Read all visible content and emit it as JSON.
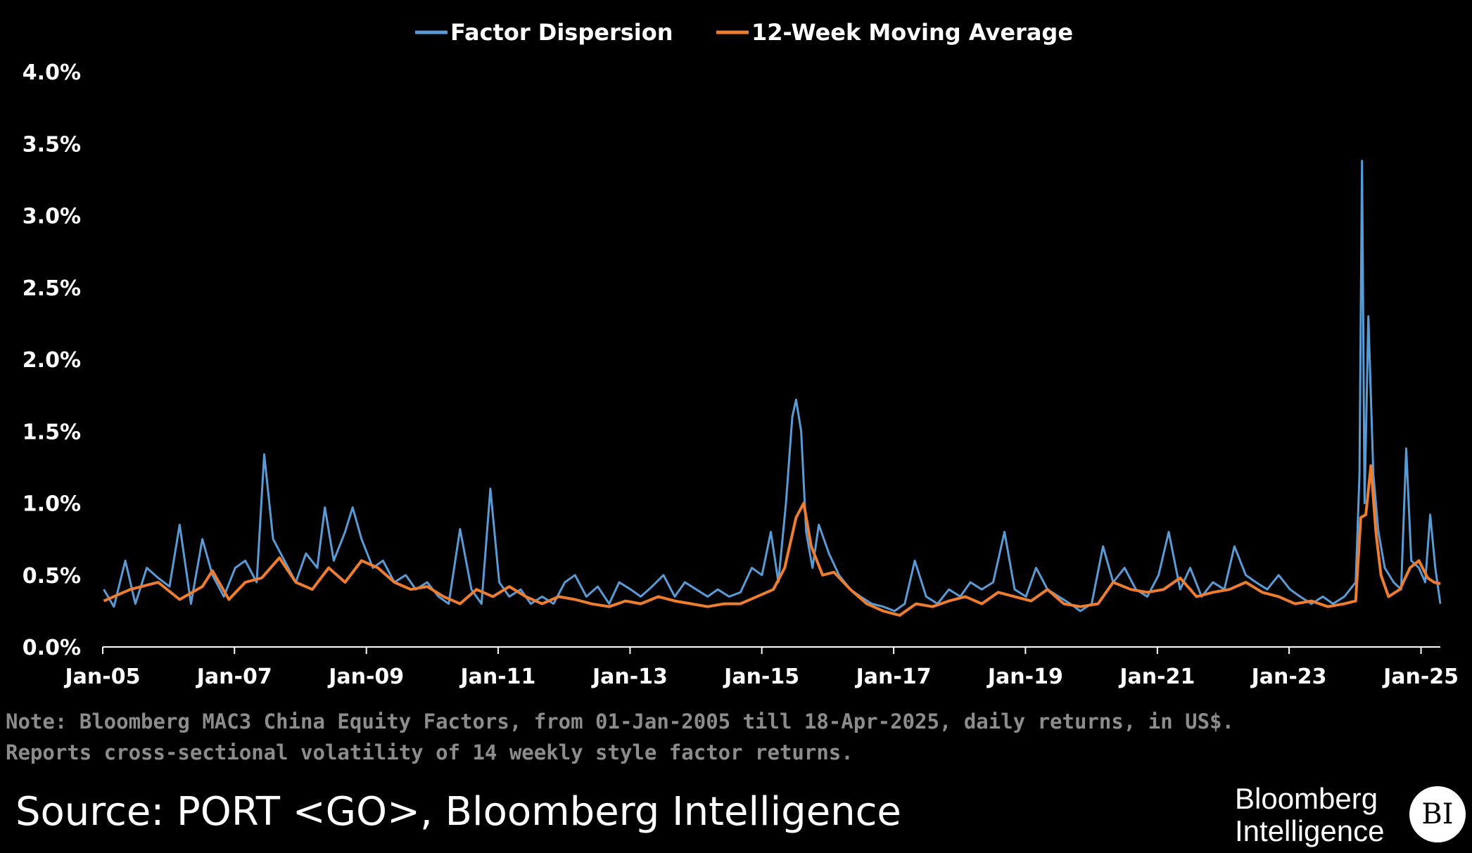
{
  "chart_data": {
    "type": "line",
    "title": "",
    "xlabel": "",
    "ylabel": "",
    "ylim": [
      0,
      4.0
    ],
    "xlim": [
      "2005-01-01",
      "2025-04-18"
    ],
    "y_ticks": [
      "0.0%",
      "0.5%",
      "1.0%",
      "1.5%",
      "2.0%",
      "2.5%",
      "3.0%",
      "3.5%",
      "4.0%"
    ],
    "x_ticks": [
      "Jan-05",
      "Jan-07",
      "Jan-09",
      "Jan-11",
      "Jan-13",
      "Jan-15",
      "Jan-17",
      "Jan-19",
      "Jan-21",
      "Jan-23",
      "Jan-25"
    ],
    "grid": false,
    "legend_position": "top-center",
    "series": [
      {
        "name": "Factor Dispersion",
        "color": "#5b9bd5",
        "points": [
          [
            "2005-01-07",
            0.4
          ],
          [
            "2005-03-04",
            0.28
          ],
          [
            "2005-05-06",
            0.6
          ],
          [
            "2005-07-01",
            0.3
          ],
          [
            "2005-09-02",
            0.55
          ],
          [
            "2005-11-04",
            0.48
          ],
          [
            "2006-01-06",
            0.42
          ],
          [
            "2006-03-03",
            0.85
          ],
          [
            "2006-05-05",
            0.3
          ],
          [
            "2006-07-07",
            0.75
          ],
          [
            "2006-09-01",
            0.5
          ],
          [
            "2006-11-03",
            0.35
          ],
          [
            "2007-01-05",
            0.55
          ],
          [
            "2007-03-02",
            0.6
          ],
          [
            "2007-05-04",
            0.45
          ],
          [
            "2007-06-15",
            1.34
          ],
          [
            "2007-08-03",
            0.75
          ],
          [
            "2007-10-05",
            0.6
          ],
          [
            "2007-12-07",
            0.45
          ],
          [
            "2008-02-01",
            0.65
          ],
          [
            "2008-04-04",
            0.55
          ],
          [
            "2008-05-16",
            0.97
          ],
          [
            "2008-07-04",
            0.6
          ],
          [
            "2008-09-05",
            0.8
          ],
          [
            "2008-10-17",
            0.97
          ],
          [
            "2008-12-05",
            0.75
          ],
          [
            "2009-02-06",
            0.55
          ],
          [
            "2009-04-03",
            0.6
          ],
          [
            "2009-06-05",
            0.45
          ],
          [
            "2009-08-07",
            0.5
          ],
          [
            "2009-10-02",
            0.4
          ],
          [
            "2009-12-04",
            0.45
          ],
          [
            "2010-02-05",
            0.35
          ],
          [
            "2010-04-02",
            0.3
          ],
          [
            "2010-06-04",
            0.82
          ],
          [
            "2010-08-06",
            0.4
          ],
          [
            "2010-10-01",
            0.3
          ],
          [
            "2010-11-19",
            1.1
          ],
          [
            "2011-01-07",
            0.45
          ],
          [
            "2011-03-04",
            0.35
          ],
          [
            "2011-05-06",
            0.4
          ],
          [
            "2011-07-01",
            0.3
          ],
          [
            "2011-09-02",
            0.35
          ],
          [
            "2011-11-04",
            0.3
          ],
          [
            "2012-01-06",
            0.45
          ],
          [
            "2012-03-02",
            0.5
          ],
          [
            "2012-05-04",
            0.35
          ],
          [
            "2012-07-06",
            0.42
          ],
          [
            "2012-09-07",
            0.3
          ],
          [
            "2012-11-02",
            0.45
          ],
          [
            "2013-01-04",
            0.4
          ],
          [
            "2013-03-01",
            0.35
          ],
          [
            "2013-05-03",
            0.42
          ],
          [
            "2013-07-05",
            0.5
          ],
          [
            "2013-09-06",
            0.35
          ],
          [
            "2013-11-01",
            0.45
          ],
          [
            "2014-01-03",
            0.4
          ],
          [
            "2014-03-07",
            0.35
          ],
          [
            "2014-05-02",
            0.4
          ],
          [
            "2014-07-04",
            0.35
          ],
          [
            "2014-09-05",
            0.38
          ],
          [
            "2014-11-07",
            0.55
          ],
          [
            "2015-01-02",
            0.5
          ],
          [
            "2015-02-20",
            0.8
          ],
          [
            "2015-04-03",
            0.45
          ],
          [
            "2015-05-15",
            1.0
          ],
          [
            "2015-06-19",
            1.6
          ],
          [
            "2015-07-10",
            1.72
          ],
          [
            "2015-08-07",
            1.5
          ],
          [
            "2015-09-04",
            0.8
          ],
          [
            "2015-10-09",
            0.55
          ],
          [
            "2015-11-13",
            0.85
          ],
          [
            "2016-01-08",
            0.65
          ],
          [
            "2016-03-04",
            0.5
          ],
          [
            "2016-05-06",
            0.4
          ],
          [
            "2016-07-01",
            0.35
          ],
          [
            "2016-09-02",
            0.3
          ],
          [
            "2016-11-04",
            0.28
          ],
          [
            "2017-01-06",
            0.25
          ],
          [
            "2017-03-03",
            0.3
          ],
          [
            "2017-04-28",
            0.6
          ],
          [
            "2017-06-30",
            0.35
          ],
          [
            "2017-09-01",
            0.3
          ],
          [
            "2017-11-03",
            0.4
          ],
          [
            "2018-01-05",
            0.35
          ],
          [
            "2018-03-02",
            0.45
          ],
          [
            "2018-05-04",
            0.4
          ],
          [
            "2018-07-06",
            0.45
          ],
          [
            "2018-09-07",
            0.8
          ],
          [
            "2018-11-02",
            0.4
          ],
          [
            "2019-01-04",
            0.35
          ],
          [
            "2019-03-01",
            0.55
          ],
          [
            "2019-05-03",
            0.4
          ],
          [
            "2019-07-05",
            0.35
          ],
          [
            "2019-09-06",
            0.3
          ],
          [
            "2019-11-01",
            0.25
          ],
          [
            "2020-01-03",
            0.3
          ],
          [
            "2020-03-06",
            0.7
          ],
          [
            "2020-05-01",
            0.45
          ],
          [
            "2020-07-03",
            0.55
          ],
          [
            "2020-09-04",
            0.4
          ],
          [
            "2020-11-06",
            0.35
          ],
          [
            "2021-01-08",
            0.5
          ],
          [
            "2021-03-05",
            0.8
          ],
          [
            "2021-05-07",
            0.4
          ],
          [
            "2021-07-02",
            0.55
          ],
          [
            "2021-09-03",
            0.35
          ],
          [
            "2021-11-05",
            0.45
          ],
          [
            "2022-01-07",
            0.4
          ],
          [
            "2022-03-04",
            0.7
          ],
          [
            "2022-05-06",
            0.5
          ],
          [
            "2022-07-01",
            0.45
          ],
          [
            "2022-09-02",
            0.4
          ],
          [
            "2022-11-04",
            0.5
          ],
          [
            "2023-01-06",
            0.4
          ],
          [
            "2023-03-03",
            0.35
          ],
          [
            "2023-05-05",
            0.3
          ],
          [
            "2023-07-07",
            0.35
          ],
          [
            "2023-09-01",
            0.3
          ],
          [
            "2023-11-03",
            0.35
          ],
          [
            "2024-01-05",
            0.45
          ],
          [
            "2024-01-26",
            1.2
          ],
          [
            "2024-02-09",
            3.38
          ],
          [
            "2024-02-23",
            1.0
          ],
          [
            "2024-03-15",
            2.3
          ],
          [
            "2024-04-12",
            1.2
          ],
          [
            "2024-05-10",
            0.8
          ],
          [
            "2024-06-14",
            0.55
          ],
          [
            "2024-08-02",
            0.45
          ],
          [
            "2024-09-13",
            0.4
          ],
          [
            "2024-10-11",
            1.38
          ],
          [
            "2024-11-08",
            0.6
          ],
          [
            "2024-12-20",
            0.55
          ],
          [
            "2025-01-24",
            0.45
          ],
          [
            "2025-02-21",
            0.92
          ],
          [
            "2025-03-21",
            0.55
          ],
          [
            "2025-04-18",
            0.3
          ]
        ]
      },
      {
        "name": "12-Week Moving Average",
        "color": "#ed7d31",
        "points": [
          [
            "2005-01-07",
            0.32
          ],
          [
            "2005-06-03",
            0.4
          ],
          [
            "2005-11-04",
            0.45
          ],
          [
            "2006-03-03",
            0.33
          ],
          [
            "2006-07-07",
            0.42
          ],
          [
            "2006-09-01",
            0.53
          ],
          [
            "2006-12-01",
            0.33
          ],
          [
            "2007-03-02",
            0.45
          ],
          [
            "2007-06-01",
            0.48
          ],
          [
            "2007-09-07",
            0.62
          ],
          [
            "2007-12-07",
            0.45
          ],
          [
            "2008-03-07",
            0.4
          ],
          [
            "2008-06-06",
            0.55
          ],
          [
            "2008-09-05",
            0.45
          ],
          [
            "2008-12-05",
            0.6
          ],
          [
            "2009-03-06",
            0.55
          ],
          [
            "2009-06-05",
            0.45
          ],
          [
            "2009-09-04",
            0.4
          ],
          [
            "2009-12-04",
            0.42
          ],
          [
            "2010-03-05",
            0.35
          ],
          [
            "2010-06-04",
            0.3
          ],
          [
            "2010-09-03",
            0.4
          ],
          [
            "2010-12-03",
            0.35
          ],
          [
            "2011-03-04",
            0.42
          ],
          [
            "2011-06-03",
            0.35
          ],
          [
            "2011-09-02",
            0.3
          ],
          [
            "2011-12-02",
            0.35
          ],
          [
            "2012-03-02",
            0.33
          ],
          [
            "2012-06-01",
            0.3
          ],
          [
            "2012-09-07",
            0.28
          ],
          [
            "2012-12-07",
            0.32
          ],
          [
            "2013-03-01",
            0.3
          ],
          [
            "2013-06-07",
            0.35
          ],
          [
            "2013-09-06",
            0.32
          ],
          [
            "2013-12-06",
            0.3
          ],
          [
            "2014-03-07",
            0.28
          ],
          [
            "2014-06-06",
            0.3
          ],
          [
            "2014-09-05",
            0.3
          ],
          [
            "2014-12-05",
            0.35
          ],
          [
            "2015-03-06",
            0.4
          ],
          [
            "2015-05-08",
            0.55
          ],
          [
            "2015-07-10",
            0.9
          ],
          [
            "2015-08-21",
            1.0
          ],
          [
            "2015-10-02",
            0.7
          ],
          [
            "2015-12-04",
            0.5
          ],
          [
            "2016-02-05",
            0.52
          ],
          [
            "2016-05-06",
            0.4
          ],
          [
            "2016-08-05",
            0.3
          ],
          [
            "2016-11-04",
            0.25
          ],
          [
            "2017-02-03",
            0.22
          ],
          [
            "2017-05-05",
            0.3
          ],
          [
            "2017-08-04",
            0.28
          ],
          [
            "2017-11-03",
            0.32
          ],
          [
            "2018-02-02",
            0.35
          ],
          [
            "2018-05-04",
            0.3
          ],
          [
            "2018-08-03",
            0.38
          ],
          [
            "2018-11-02",
            0.35
          ],
          [
            "2019-02-01",
            0.32
          ],
          [
            "2019-05-03",
            0.4
          ],
          [
            "2019-08-02",
            0.3
          ],
          [
            "2019-11-01",
            0.28
          ],
          [
            "2020-02-07",
            0.3
          ],
          [
            "2020-05-01",
            0.45
          ],
          [
            "2020-08-07",
            0.4
          ],
          [
            "2020-11-06",
            0.38
          ],
          [
            "2021-02-05",
            0.4
          ],
          [
            "2021-05-07",
            0.48
          ],
          [
            "2021-08-06",
            0.35
          ],
          [
            "2021-11-05",
            0.38
          ],
          [
            "2022-02-04",
            0.4
          ],
          [
            "2022-05-06",
            0.45
          ],
          [
            "2022-08-05",
            0.38
          ],
          [
            "2022-11-04",
            0.35
          ],
          [
            "2023-02-03",
            0.3
          ],
          [
            "2023-05-05",
            0.32
          ],
          [
            "2023-08-04",
            0.28
          ],
          [
            "2023-11-03",
            0.3
          ],
          [
            "2024-01-05",
            0.32
          ],
          [
            "2024-02-02",
            0.9
          ],
          [
            "2024-03-01",
            0.92
          ],
          [
            "2024-03-29",
            1.26
          ],
          [
            "2024-04-26",
            0.8
          ],
          [
            "2024-05-24",
            0.5
          ],
          [
            "2024-07-05",
            0.35
          ],
          [
            "2024-09-06",
            0.4
          ],
          [
            "2024-11-01",
            0.55
          ],
          [
            "2024-12-20",
            0.6
          ],
          [
            "2025-02-07",
            0.48
          ],
          [
            "2025-03-14",
            0.45
          ],
          [
            "2025-04-18",
            0.44
          ]
        ]
      }
    ]
  },
  "note": {
    "line1": "Note: Bloomberg MAC3 China Equity Factors, from 01-Jan-2005 till 18-Apr-2025, daily returns, in US$.",
    "line2": "Reports cross-sectional volatility of 14 weekly style factor returns."
  },
  "source": "Source: PORT <GO>, Bloomberg Intelligence",
  "logo": {
    "line1": "Bloomberg",
    "line2": "Intelligence",
    "badge": "BI"
  }
}
